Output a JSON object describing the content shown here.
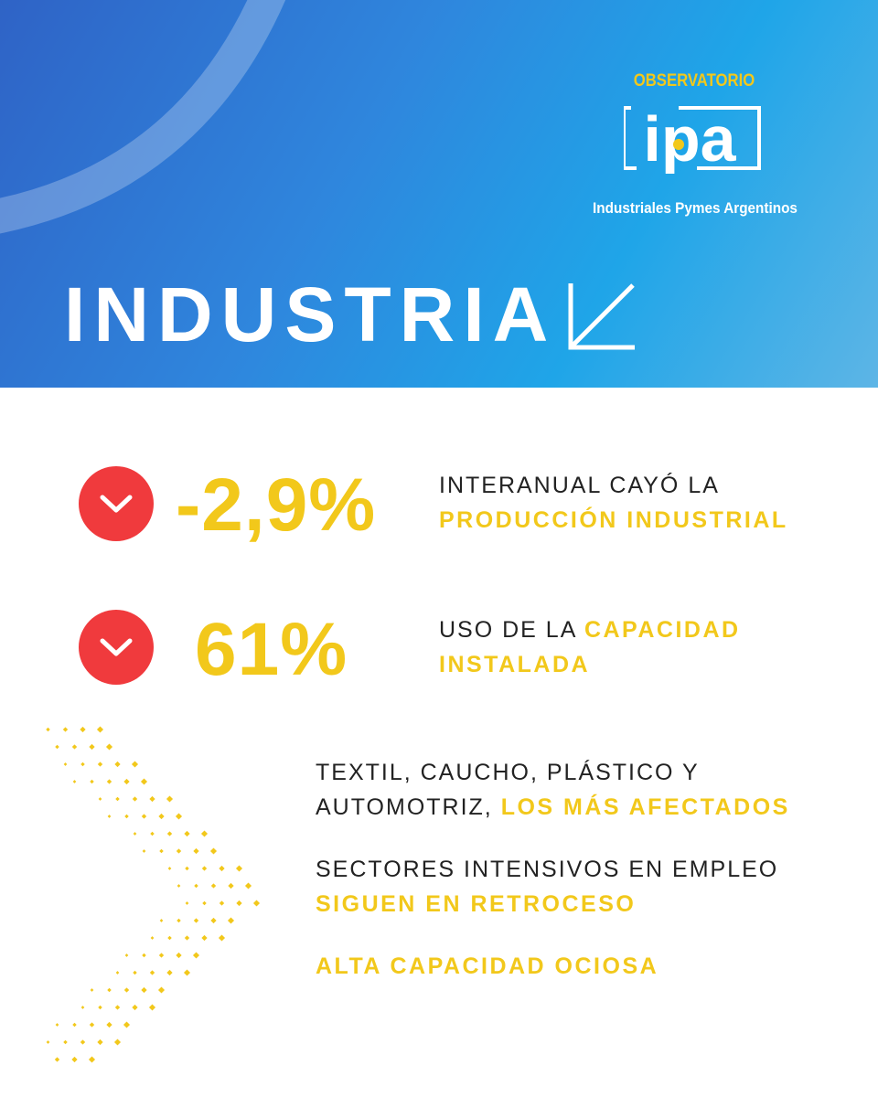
{
  "logo": {
    "top_text": "OBSERVATORIO",
    "brand": "ipa",
    "bottom_text": "Industriales Pymes Argentinos"
  },
  "header": {
    "title": "INDUSTRIA",
    "trend_icon": "arrow-down-left-icon"
  },
  "stats": [
    {
      "icon": "chevron-down-icon",
      "value": "-2,9%",
      "text": "INTERANUAL CAYÓ LA",
      "highlight": "PRODUCCIÓN INDUSTRIAL"
    },
    {
      "icon": "chevron-down-icon",
      "value": "61%",
      "text": "USO DE LA",
      "highlight": "CAPACIDAD INSTALADA"
    }
  ],
  "bullets": [
    {
      "line1": "TEXTIL, CAUCHO, PLÁSTICO Y",
      "text": "AUTOMOTRIZ,",
      "highlight": "LOS MÁS AFECTADOS"
    },
    {
      "line1": "SECTORES INTENSIVOS EN EMPLEO",
      "text": "",
      "highlight": "SIGUEN EN RETROCESO"
    },
    {
      "line1": "",
      "text": "",
      "highlight": "ALTA CAPACIDAD OCIOSA"
    }
  ],
  "decor": {
    "pattern": "dotted-chevron-right"
  },
  "colors": {
    "accent_yellow": "#f2c81b",
    "alert_red": "#f03a3d",
    "header_blue": "#2f86dd"
  }
}
